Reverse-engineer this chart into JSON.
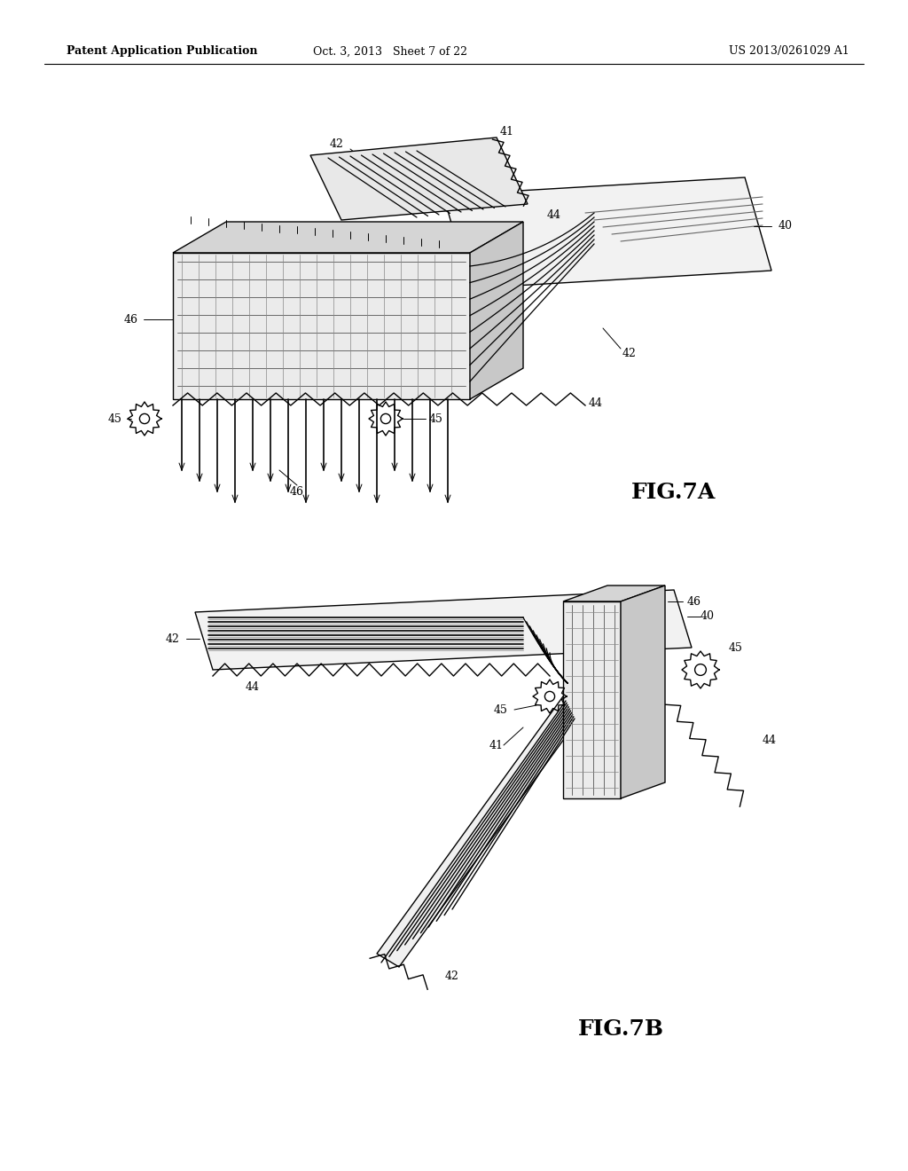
{
  "background_color": "#ffffff",
  "header_left": "Patent Application Publication",
  "header_center": "Oct. 3, 2013   Sheet 7 of 22",
  "header_right": "US 2013/0261029 A1",
  "fig7a_label": "FIG.7A",
  "fig7b_label": "FIG.7B"
}
